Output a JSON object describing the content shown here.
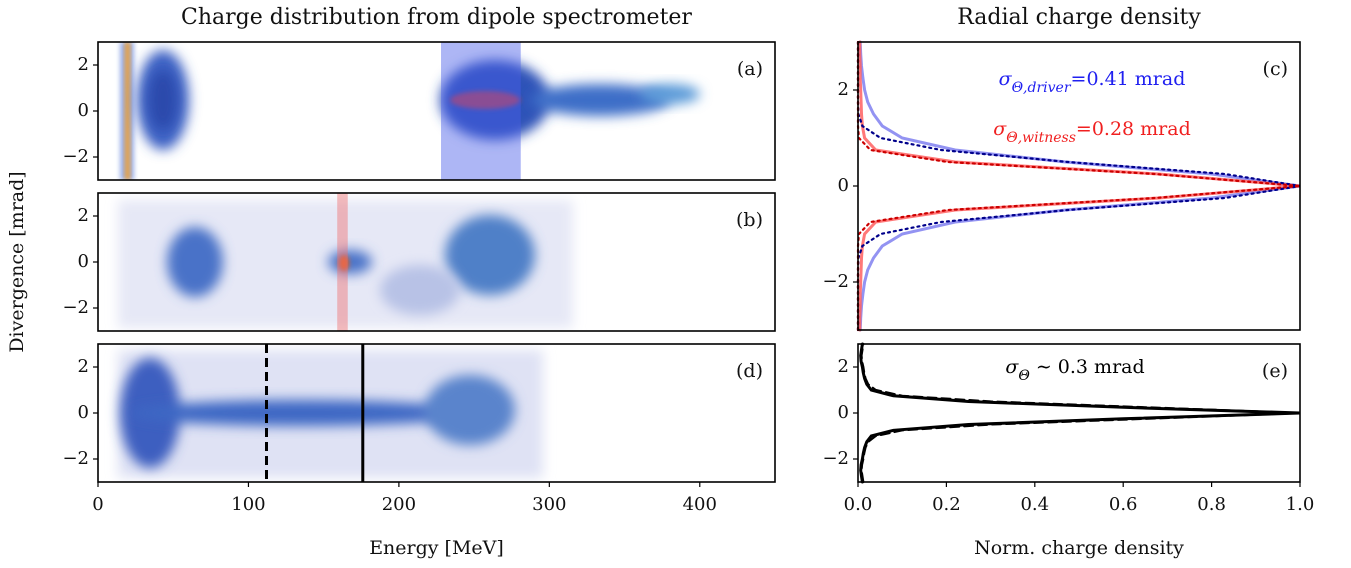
{
  "chart_data": [
    {
      "type": "heatmap",
      "title": "Charge distribution from dipole spectrometer",
      "panel_label": "(a)",
      "xlim": [
        0,
        450
      ],
      "ylim": [
        -3,
        3
      ],
      "yticks": [
        {
          "value": -2,
          "label": "−2"
        },
        0,
        2
      ],
      "spans": [
        {
          "range": [
            228,
            281
          ],
          "color": "#4a5ee8"
        }
      ]
    },
    {
      "type": "heatmap",
      "panel_label": "(b)",
      "ylabel": "Divergence [mrad]",
      "xlim": [
        0,
        450
      ],
      "ylim": [
        -3,
        3
      ],
      "yticks": [
        {
          "value": -2,
          "label": "−2"
        },
        0,
        2
      ],
      "spans": [
        {
          "range": [
            159,
            166
          ],
          "color": "#f07070"
        }
      ]
    },
    {
      "type": "heatmap",
      "panel_label": "(d)",
      "xlabel": "Energy [MeV]",
      "xlim": [
        0,
        450
      ],
      "ylim": [
        -3,
        3
      ],
      "yticks": [
        {
          "value": -2,
          "label": "−2"
        },
        0,
        2
      ],
      "xticks": [
        0,
        100,
        200,
        300,
        400
      ],
      "vlines": [
        {
          "x": 112,
          "linestyle": "dashed"
        },
        {
          "x": 176,
          "linestyle": "solid"
        }
      ]
    },
    {
      "type": "line",
      "title": "Radial charge density",
      "panel_label": "(c)",
      "xlim": [
        0,
        1
      ],
      "ylim": [
        -3,
        3
      ],
      "yticks": [
        {
          "value": -2,
          "label": "−2"
        },
        0,
        2
      ],
      "y": [
        -3,
        -2.75,
        -2.5,
        -2.25,
        -2,
        -1.75,
        -1.5,
        -1.25,
        -1,
        -0.75,
        -0.5,
        -0.25,
        0,
        0.25,
        0.5,
        0.75,
        1,
        1.25,
        1.5,
        1.75,
        2,
        2.25,
        2.5,
        2.75,
        3
      ],
      "series": [
        {
          "color": "#8080f0",
          "linestyle": "solid",
          "values": [
            0.005,
            0.006,
            0.008,
            0.011,
            0.015,
            0.022,
            0.035,
            0.055,
            0.1,
            0.22,
            0.47,
            0.8,
            1,
            0.8,
            0.47,
            0.22,
            0.1,
            0.055,
            0.035,
            0.022,
            0.015,
            0.011,
            0.008,
            0.006,
            0.005
          ]
        },
        {
          "color": "#ff6060",
          "linestyle": "solid",
          "values": [
            0.004,
            0.004,
            0.005,
            0.005,
            0.006,
            0.007,
            0.008,
            0.01,
            0.015,
            0.04,
            0.22,
            0.68,
            1,
            0.68,
            0.22,
            0.04,
            0.015,
            0.01,
            0.008,
            0.007,
            0.006,
            0.005,
            0.005,
            0.004,
            0.004
          ]
        },
        {
          "color": "#00008b",
          "linestyle": "dotted",
          "values": [
            0,
            0,
            0,
            0,
            0,
            0,
            0.001,
            0.01,
            0.051,
            0.188,
            0.475,
            0.83,
            1,
            0.83,
            0.475,
            0.188,
            0.051,
            0.01,
            0.001,
            0,
            0,
            0,
            0,
            0,
            0
          ]
        },
        {
          "color": "#cc0000",
          "linestyle": "dotted",
          "values": [
            0,
            0,
            0,
            0,
            0,
            0,
            0,
            0,
            0.002,
            0.028,
            0.203,
            0.671,
            1,
            0.671,
            0.203,
            0.028,
            0.002,
            0,
            0,
            0,
            0,
            0,
            0,
            0,
            0
          ]
        }
      ],
      "annotations": [
        {
          "symbol": "σ",
          "subscript": "Θ,driver",
          "text": "=0.41 mrad",
          "color": "#2020f0"
        },
        {
          "symbol": "σ",
          "subscript": "Θ,witness",
          "text": "=0.28 mrad",
          "color": "#f02020"
        }
      ]
    },
    {
      "type": "line",
      "panel_label": "(e)",
      "xlabel": "Norm. charge density",
      "xlim": [
        0,
        1
      ],
      "ylim": [
        -3,
        3
      ],
      "yticks": [
        {
          "value": -2,
          "label": "−2"
        },
        0,
        2
      ],
      "xticks": [
        {
          "value": 0,
          "label": "0.0"
        },
        {
          "value": 0.2,
          "label": "0.2"
        },
        {
          "value": 0.4,
          "label": "0.4"
        },
        {
          "value": 0.6,
          "label": "0.6"
        },
        {
          "value": 0.8,
          "label": "0.8"
        },
        {
          "value": 1,
          "label": "1.0"
        }
      ],
      "y": [
        -3,
        -2.75,
        -2.5,
        -2.25,
        -2,
        -1.75,
        -1.5,
        -1.25,
        -1,
        -0.75,
        -0.5,
        -0.25,
        0,
        0.25,
        0.5,
        0.75,
        1,
        1.25,
        1.5,
        1.75,
        2,
        2.25,
        2.5,
        2.75,
        3
      ],
      "series": [
        {
          "color": "#000000",
          "linestyle": "solid",
          "values": [
            0.01,
            0.008,
            0.006,
            0.007,
            0.01,
            0.012,
            0.015,
            0.02,
            0.03,
            0.08,
            0.25,
            0.6,
            1,
            0.6,
            0.25,
            0.08,
            0.03,
            0.02,
            0.015,
            0.012,
            0.01,
            0.007,
            0.006,
            0.008,
            0.01
          ]
        },
        {
          "color": "#000000",
          "linestyle": "dashed",
          "values": [
            0.012,
            0.01,
            0.008,
            0.009,
            0.012,
            0.014,
            0.017,
            0.023,
            0.04,
            0.1,
            0.3,
            0.65,
            1,
            0.65,
            0.3,
            0.1,
            0.04,
            0.023,
            0.017,
            0.014,
            0.012,
            0.009,
            0.008,
            0.01,
            0.012
          ]
        }
      ],
      "annotations": [
        {
          "symbol": "σ",
          "subscript": "Θ",
          "text": " ∼ 0.3 mrad",
          "color": "#000000"
        }
      ]
    }
  ]
}
